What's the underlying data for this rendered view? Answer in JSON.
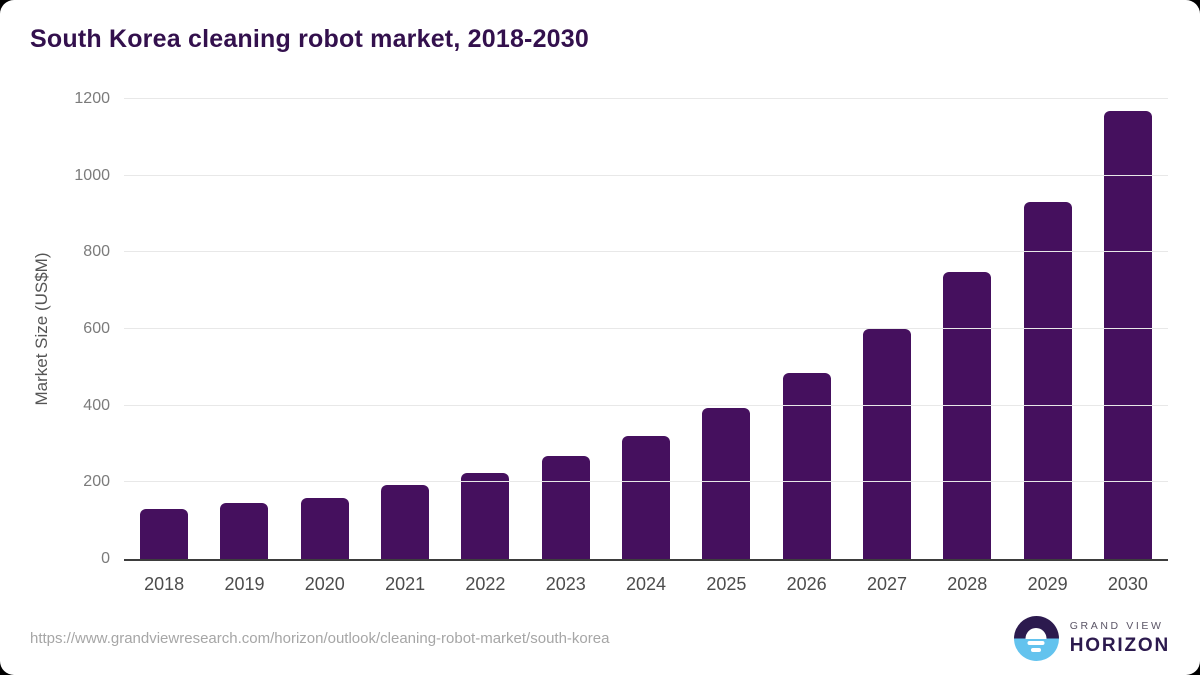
{
  "header": {
    "title": "South Korea cleaning robot market, 2018-2030"
  },
  "chart_data": {
    "type": "bar",
    "categories": [
      "2018",
      "2019",
      "2020",
      "2021",
      "2022",
      "2023",
      "2024",
      "2025",
      "2026",
      "2027",
      "2028",
      "2029",
      "2030"
    ],
    "values": [
      130,
      145,
      158,
      192,
      224,
      268,
      322,
      394,
      486,
      600,
      748,
      931,
      1168
    ],
    "title": "South Korea cleaning robot market, 2018-2030",
    "xlabel": "",
    "ylabel": "Market Size (US$M)",
    "ylim": [
      0,
      1200
    ],
    "ytick_step": 200,
    "yticks": [
      0,
      200,
      400,
      600,
      800,
      1000,
      1200
    ],
    "grid": true,
    "legend": false,
    "bar_color": "#45105e"
  },
  "colors": {
    "title": "#33104d",
    "bar": "#45105e",
    "gridline": "#e8e8e8",
    "axis_line": "#3d3d3d",
    "y_tick_text": "#7b7b7b",
    "x_tick_text": "#4c4c4c",
    "url_text": "#a6a6a6",
    "logo_purple": "#2c1a4e",
    "logo_blue": "#63c3ee"
  },
  "footer": {
    "source_url": "https://www.grandviewresearch.com/horizon/outlook/cleaning-robot-market/south-korea",
    "logo": {
      "line1": "GRAND VIEW",
      "line2": "HORIZON"
    }
  }
}
